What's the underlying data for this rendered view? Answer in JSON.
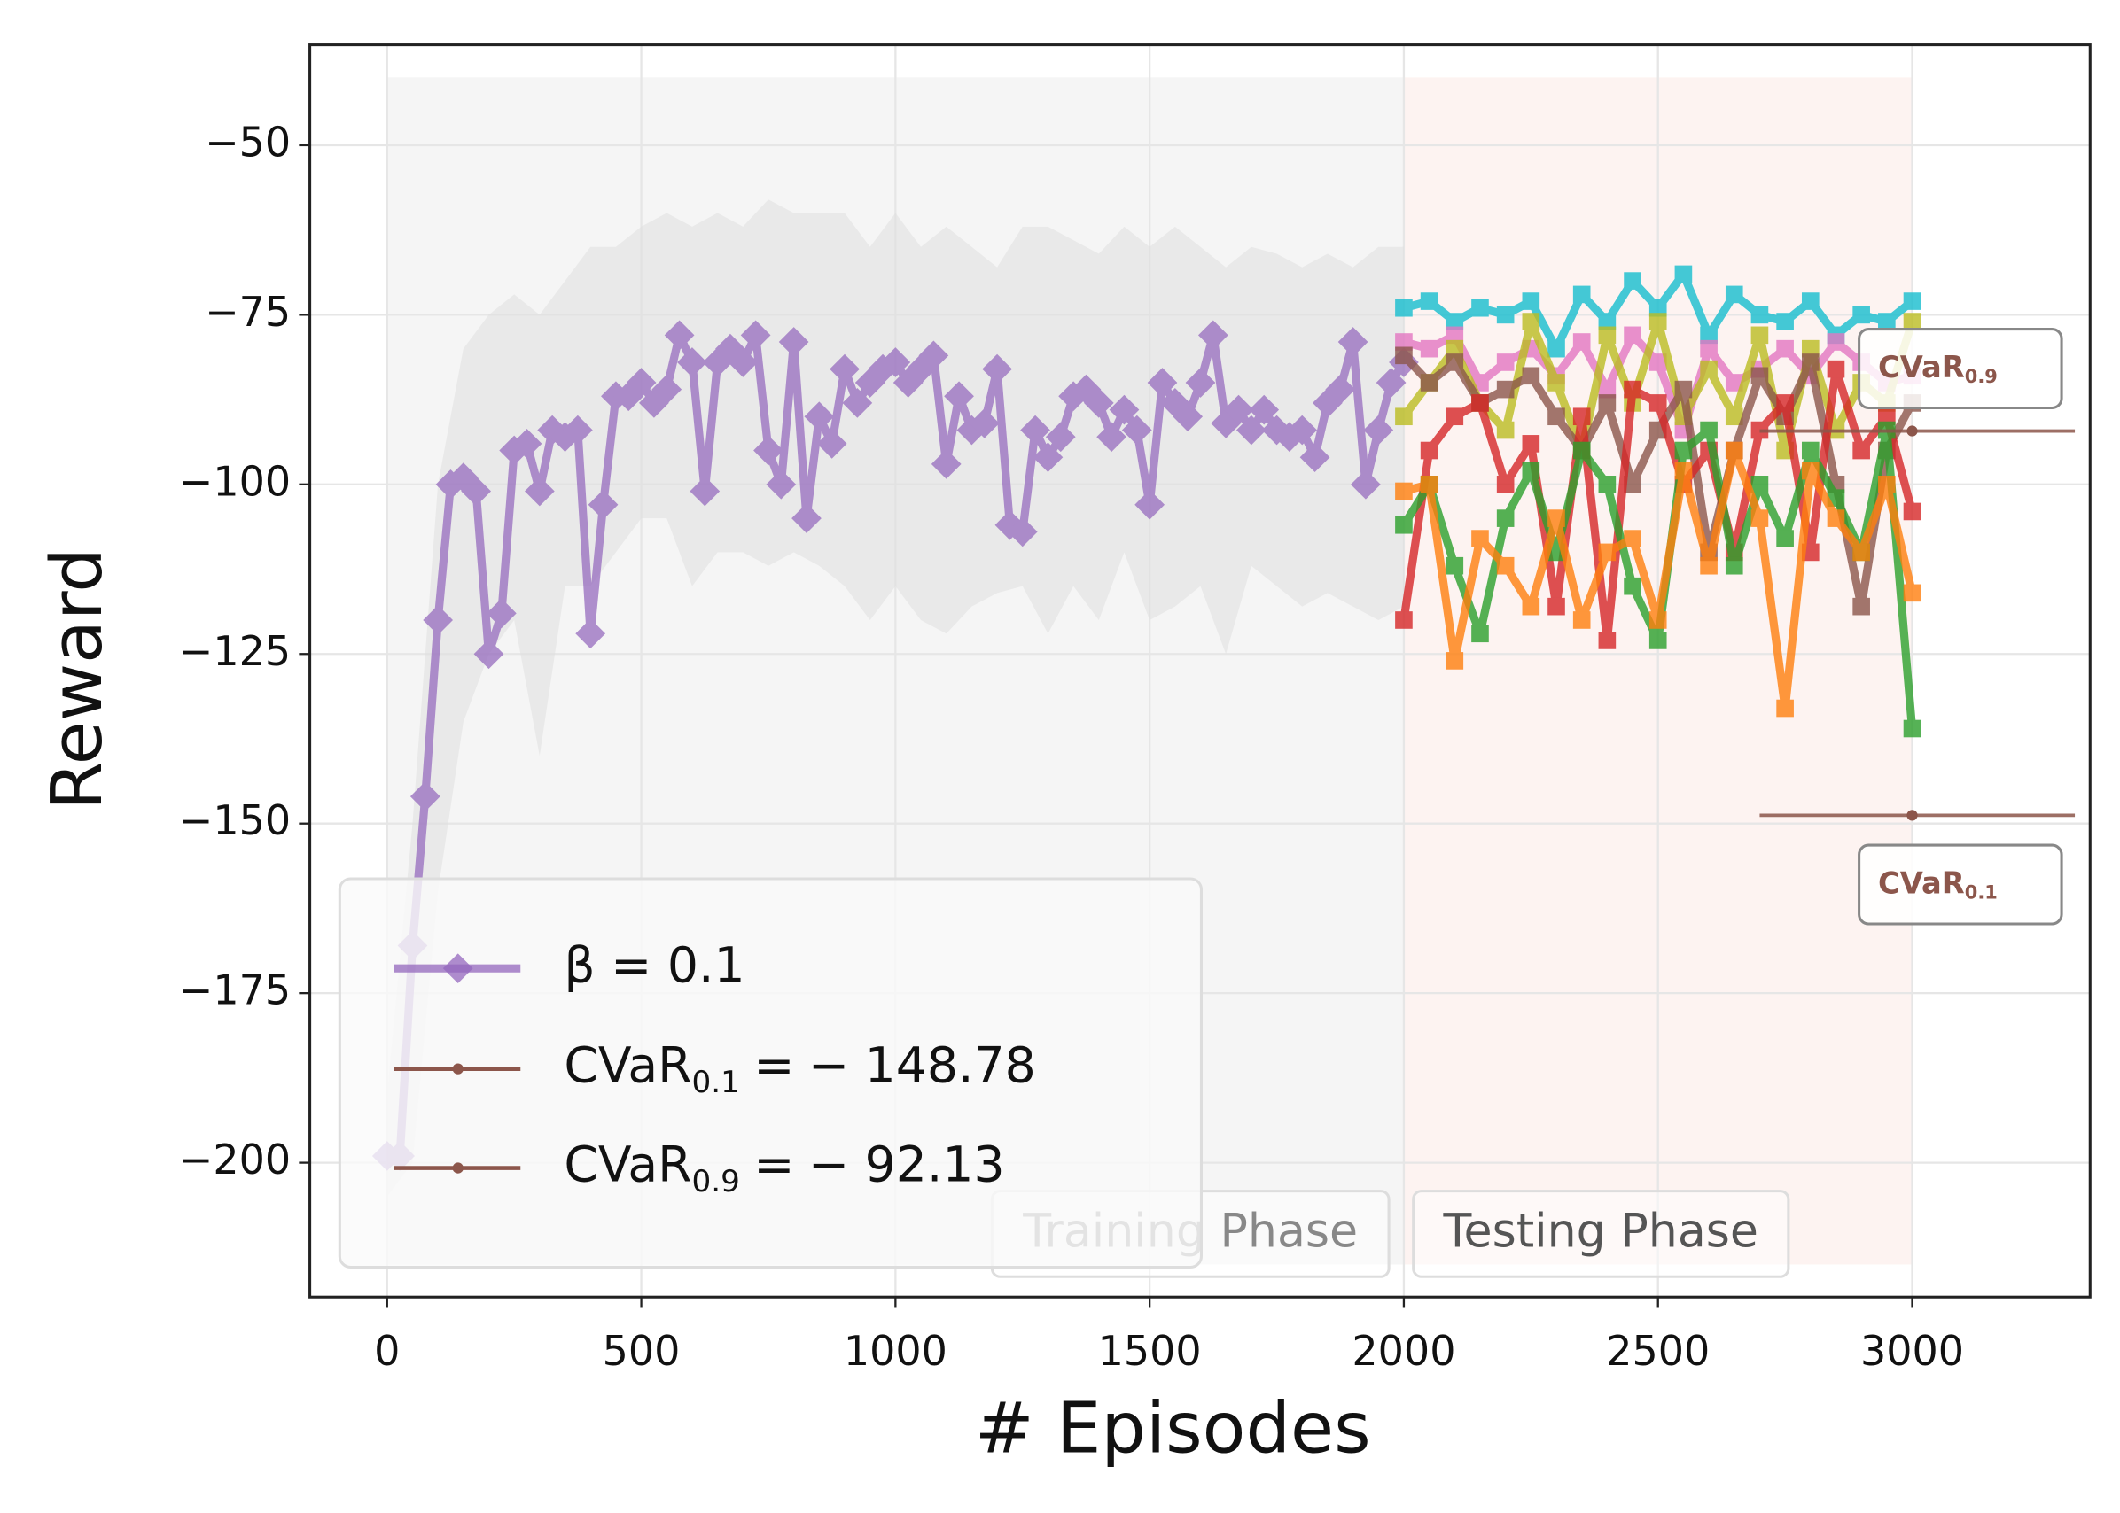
{
  "chart_data": {
    "type": "line",
    "xlabel": "# Episodes",
    "ylabel": "Reward",
    "xlim": [
      -152,
      3350
    ],
    "ylim": [
      -219.8,
      -35.2
    ],
    "xticks": [
      0,
      500,
      1000,
      1500,
      2000,
      2500,
      3000
    ],
    "yticks": [
      {
        "value": -50,
        "label": "−50"
      },
      {
        "value": -75,
        "label": "−75"
      },
      {
        "value": -100,
        "label": "−100"
      },
      {
        "value": -125,
        "label": "−125"
      },
      {
        "value": -150,
        "label": "−150"
      },
      {
        "value": -175,
        "label": "−175"
      },
      {
        "value": -200,
        "label": "−200"
      }
    ],
    "grid": true,
    "legend": "lower left",
    "spans": [
      {
        "label": "Training Phase",
        "x": [
          0,
          2000
        ],
        "y": [
          -215,
          -40
        ],
        "color": "#f2f2f2"
      },
      {
        "label": "Testing Phase",
        "x": [
          2000,
          3000
        ],
        "y": [
          -215,
          -40
        ],
        "color": "#fdf0ee"
      }
    ],
    "series": [
      {
        "name": "β = 0.1",
        "color": "#9467bd",
        "marker": "diamond",
        "x": [
          0,
          25,
          50,
          75,
          100,
          125,
          150,
          175,
          200,
          225,
          250,
          275,
          300,
          325,
          350,
          375,
          400,
          425,
          450,
          475,
          500,
          525,
          550,
          575,
          600,
          625,
          650,
          675,
          700,
          725,
          750,
          775,
          800,
          825,
          850,
          875,
          900,
          925,
          950,
          975,
          1000,
          1025,
          1050,
          1075,
          1100,
          1125,
          1150,
          1175,
          1200,
          1225,
          1250,
          1275,
          1300,
          1325,
          1350,
          1375,
          1400,
          1425,
          1450,
          1475,
          1500,
          1525,
          1550,
          1575,
          1600,
          1625,
          1650,
          1675,
          1700,
          1725,
          1750,
          1775,
          1800,
          1825,
          1850,
          1875,
          1900,
          1925,
          1950,
          1975,
          2000
        ],
        "values": [
          -199,
          -199,
          -168,
          -146,
          -120,
          -100,
          -99,
          -101,
          -125,
          -119,
          -95,
          -94,
          -101,
          -92,
          -93,
          -92,
          -122,
          -103,
          -87,
          -87,
          -85,
          -88,
          -86,
          -78,
          -82,
          -101,
          -82,
          -80,
          -82,
          -78,
          -95,
          -100,
          -79,
          -105,
          -90,
          -94,
          -83,
          -88,
          -85,
          -83,
          -82,
          -85,
          -83,
          -81,
          -97,
          -87,
          -92,
          -91,
          -83,
          -106,
          -107,
          -92,
          -96,
          -93,
          -87,
          -86,
          -88,
          -93,
          -89,
          -92,
          -103,
          -85,
          -88,
          -90,
          -85,
          -78,
          -91,
          -89,
          -92,
          -89,
          -92,
          -93,
          -92,
          -96,
          -88,
          -86,
          -79,
          -100,
          -92,
          -85,
          -82
        ],
        "band": {
          "color": "#dddddd",
          "x": [
            0,
            50,
            100,
            150,
            200,
            250,
            300,
            350,
            400,
            450,
            500,
            550,
            600,
            650,
            700,
            750,
            800,
            850,
            900,
            950,
            1000,
            1050,
            1100,
            1150,
            1200,
            1250,
            1300,
            1350,
            1400,
            1450,
            1500,
            1550,
            1600,
            1650,
            1700,
            1750,
            1800,
            1850,
            1900,
            1950,
            2000
          ],
          "upper": [
            -190,
            -150,
            -100,
            -80,
            -75,
            -72,
            -75,
            -70,
            -65,
            -65,
            -62,
            -60,
            -62,
            -60,
            -62,
            -58,
            -60,
            -60,
            -60,
            -65,
            -60,
            -65,
            -62,
            -65,
            -68,
            -62,
            -62,
            -64,
            -66,
            -62,
            -65,
            -62,
            -65,
            -68,
            -65,
            -66,
            -68,
            -66,
            -68,
            -65,
            -65
          ],
          "lower": [
            -205,
            -200,
            -160,
            -135,
            -125,
            -120,
            -140,
            -115,
            -115,
            -110,
            -105,
            -105,
            -115,
            -110,
            -110,
            -112,
            -110,
            -112,
            -115,
            -120,
            -115,
            -120,
            -122,
            -118,
            -116,
            -115,
            -122,
            -115,
            -120,
            -110,
            -120,
            -118,
            -115,
            -125,
            -112,
            -115,
            -118,
            -116,
            -118,
            -120,
            -118
          ]
        }
      },
      {
        "color": "#17becf",
        "marker": "square",
        "x": [
          2000,
          2050,
          2100,
          2150,
          2200,
          2250,
          2300,
          2350,
          2400,
          2450,
          2500,
          2550,
          2600,
          2650,
          2700,
          2750,
          2800,
          2850,
          2900,
          2950,
          3000
        ],
        "values": [
          -74,
          -73,
          -76,
          -74,
          -75,
          -73,
          -80,
          -72,
          -76,
          -70,
          -74,
          -69,
          -78,
          -72,
          -75,
          -76,
          -73,
          -78,
          -75,
          -76,
          -73
        ]
      },
      {
        "color": "#e377c2",
        "marker": "square",
        "x": [
          2000,
          2050,
          2100,
          2150,
          2200,
          2250,
          2300,
          2350,
          2400,
          2450,
          2500,
          2550,
          2600,
          2650,
          2700,
          2750,
          2800,
          2850,
          2900,
          2950,
          3000
        ],
        "values": [
          -79,
          -80,
          -78,
          -85,
          -82,
          -80,
          -84,
          -79,
          -86,
          -78,
          -82,
          -92,
          -80,
          -85,
          -83,
          -80,
          -84,
          -79,
          -82,
          -85,
          -84
        ]
      },
      {
        "color": "#bcbd22",
        "marker": "square",
        "x": [
          2000,
          2050,
          2100,
          2150,
          2200,
          2250,
          2300,
          2350,
          2400,
          2450,
          2500,
          2550,
          2600,
          2650,
          2700,
          2750,
          2800,
          2850,
          2900,
          2950,
          3000
        ],
        "values": [
          -90,
          -85,
          -80,
          -88,
          -92,
          -76,
          -85,
          -95,
          -78,
          -88,
          -76,
          -90,
          -83,
          -90,
          -78,
          -95,
          -80,
          -92,
          -85,
          -88,
          -76
        ]
      },
      {
        "color": "#8c564b",
        "marker": "square",
        "x": [
          2000,
          2050,
          2100,
          2150,
          2200,
          2250,
          2300,
          2350,
          2400,
          2450,
          2500,
          2550,
          2600,
          2650,
          2700,
          2750,
          2800,
          2850,
          2900,
          2950,
          3000
        ],
        "values": [
          -81,
          -85,
          -82,
          -88,
          -86,
          -84,
          -90,
          -95,
          -88,
          -100,
          -92,
          -86,
          -110,
          -95,
          -84,
          -90,
          -82,
          -100,
          -118,
          -95,
          -88
        ]
      },
      {
        "color": "#d62728",
        "marker": "square",
        "x": [
          2000,
          2050,
          2100,
          2150,
          2200,
          2250,
          2300,
          2350,
          2400,
          2450,
          2500,
          2550,
          2600,
          2650,
          2700,
          2750,
          2800,
          2850,
          2900,
          2950,
          3000
        ],
        "values": [
          -120,
          -95,
          -90,
          -88,
          -100,
          -94,
          -118,
          -90,
          -123,
          -86,
          -88,
          -100,
          -95,
          -110,
          -92,
          -88,
          -110,
          -83,
          -95,
          -90,
          -104
        ]
      },
      {
        "color": "#2ca02c",
        "marker": "square",
        "x": [
          2000,
          2050,
          2100,
          2150,
          2200,
          2250,
          2300,
          2350,
          2400,
          2450,
          2500,
          2550,
          2600,
          2650,
          2700,
          2750,
          2800,
          2850,
          2900,
          2950,
          3000
        ],
        "values": [
          -106,
          -100,
          -112,
          -122,
          -105,
          -98,
          -110,
          -95,
          -100,
          -115,
          -123,
          -95,
          -92,
          -112,
          -100,
          -108,
          -95,
          -102,
          -110,
          -92,
          -136
        ]
      },
      {
        "color": "#ff7f0e",
        "marker": "square",
        "x": [
          2000,
          2050,
          2100,
          2150,
          2200,
          2250,
          2300,
          2350,
          2400,
          2450,
          2500,
          2550,
          2600,
          2650,
          2700,
          2750,
          2800,
          2850,
          2900,
          2950,
          3000
        ],
        "values": [
          -101,
          -100,
          -126,
          -108,
          -112,
          -118,
          -105,
          -120,
          -110,
          -108,
          -120,
          -98,
          -112,
          -95,
          -105,
          -133,
          -98,
          -105,
          -110,
          -100,
          -116
        ]
      }
    ],
    "cvar": [
      {
        "name": "CVaR",
        "name_sub": "0.1",
        "relation": "=",
        "value": -148.78,
        "value_label": "− 148.78",
        "color": "#8c564b",
        "x_range": [
          2700,
          3320
        ],
        "marker_x": 3000
      },
      {
        "name": "CVaR",
        "name_sub": "0.9",
        "relation": "=",
        "value": -92.13,
        "value_label": "− 92.13",
        "color": "#8c564b",
        "x_range": [
          2700,
          3320
        ],
        "marker_x": 3000
      }
    ]
  }
}
